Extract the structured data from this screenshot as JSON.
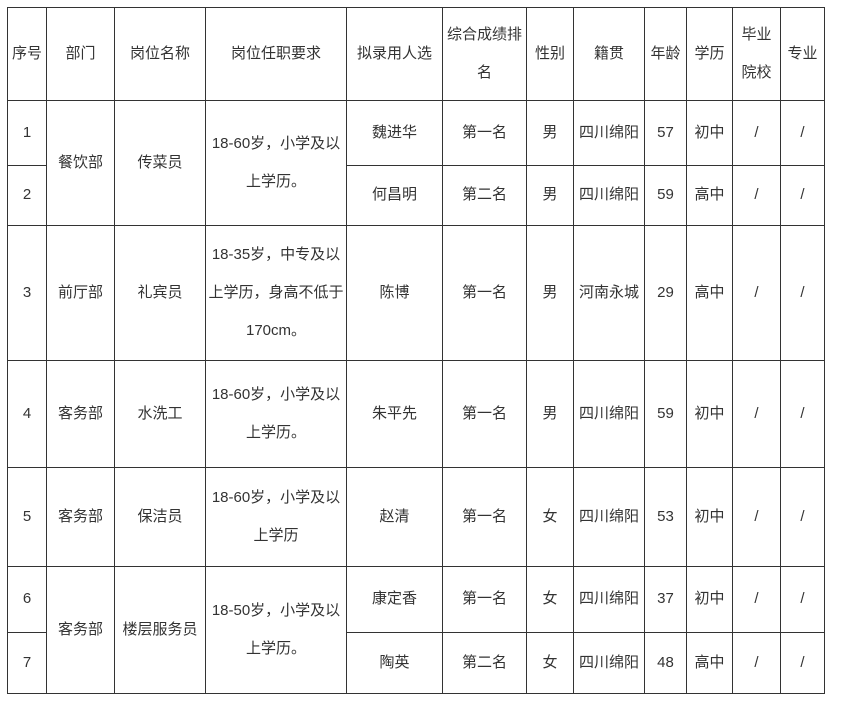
{
  "colors": {
    "border": "#333333",
    "text": "#333333",
    "background": "#ffffff"
  },
  "table": {
    "headers": [
      "序号",
      "部门",
      "岗位名称",
      "岗位任职要求",
      "拟录用人选",
      "综合成绩排名",
      "性别",
      "籍贯",
      "年龄",
      "学历",
      "毕业院校",
      "专业"
    ],
    "groups": [
      {
        "dept": "餐饮部",
        "position": "传菜员",
        "requirements": "18-60岁，小学及以上学历。",
        "rows": [
          {
            "no": "1",
            "candidate": "魏进华",
            "rank": "第一名",
            "gender": "男",
            "hometown": "四川绵阳",
            "age": "57",
            "education": "初中",
            "school": "/",
            "major": "/"
          },
          {
            "no": "2",
            "candidate": "何昌明",
            "rank": "第二名",
            "gender": "男",
            "hometown": "四川绵阳",
            "age": "59",
            "education": "高中",
            "school": "/",
            "major": "/"
          }
        ]
      },
      {
        "dept": "前厅部",
        "position": "礼宾员",
        "requirements": "18-35岁，中专及以上学历，身高不低于170cm。",
        "rows": [
          {
            "no": "3",
            "candidate": "陈博",
            "rank": "第一名",
            "gender": "男",
            "hometown": "河南永城",
            "age": "29",
            "education": "高中",
            "school": "/",
            "major": "/"
          }
        ]
      },
      {
        "dept": "客务部",
        "position": "水洗工",
        "requirements": "18-60岁，小学及以上学历。",
        "rows": [
          {
            "no": "4",
            "candidate": "朱平先",
            "rank": "第一名",
            "gender": "男",
            "hometown": "四川绵阳",
            "age": "59",
            "education": "初中",
            "school": "/",
            "major": "/"
          }
        ]
      },
      {
        "dept": "客务部",
        "position": "保洁员",
        "requirements": "18-60岁，小学及以上学历",
        "rows": [
          {
            "no": "5",
            "candidate": "赵清",
            "rank": "第一名",
            "gender": "女",
            "hometown": "四川绵阳",
            "age": "53",
            "education": "初中",
            "school": "/",
            "major": "/"
          }
        ]
      },
      {
        "dept": "客务部",
        "position": "楼层服务员",
        "requirements": "18-50岁，小学及以上学历。",
        "rows": [
          {
            "no": "6",
            "candidate": "康定香",
            "rank": "第一名",
            "gender": "女",
            "hometown": "四川绵阳",
            "age": "37",
            "education": "初中",
            "school": "/",
            "major": "/"
          },
          {
            "no": "7",
            "candidate": "陶英",
            "rank": "第二名",
            "gender": "女",
            "hometown": "四川绵阳",
            "age": "48",
            "education": "高中",
            "school": "/",
            "major": "/"
          }
        ]
      }
    ]
  }
}
